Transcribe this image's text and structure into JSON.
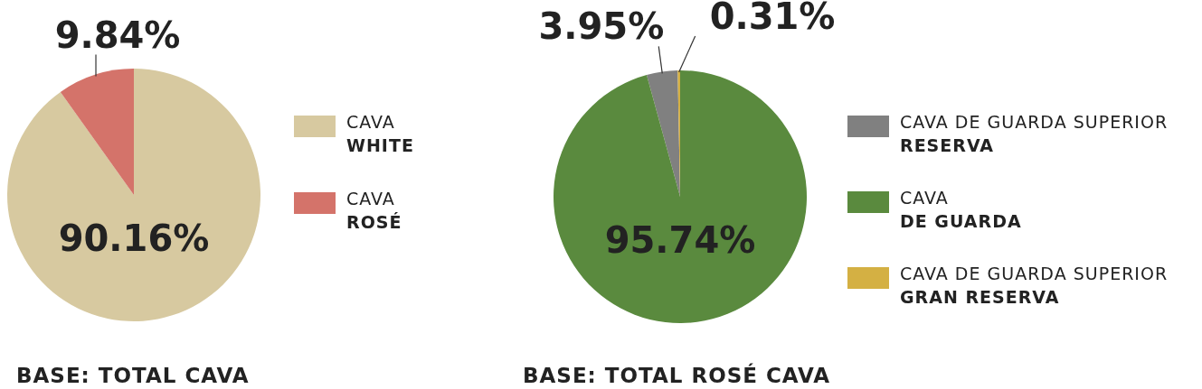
{
  "chart_data": [
    {
      "type": "pie",
      "categories": [
        "CAVA\nWHITE",
        "CAVA\nROSÉ"
      ],
      "values": [
        90.16,
        9.84
      ],
      "colors": [
        "#d7c9a0",
        "#d4736a"
      ],
      "value_labels": [
        "90.16%",
        "9.84%"
      ],
      "legend": "right",
      "annotations": [
        "BASE: TOTAL CAVA"
      ]
    },
    {
      "type": "pie",
      "categories": [
        "CAVA DE GUARDA SUPERIOR\nRESERVA",
        "CAVA\nDE GUARDA",
        "CAVA DE GUARDA SUPERIOR\nGRAN RESERVA"
      ],
      "values": [
        3.95,
        95.74,
        0.31
      ],
      "colors": [
        "#808080",
        "#5a8a3e",
        "#d4b043"
      ],
      "value_labels": [
        "3.95%",
        "95.74%",
        "0.31%"
      ],
      "legend": "right",
      "annotations": [
        "BASE: TOTAL ROSÉ CAVA"
      ]
    }
  ]
}
